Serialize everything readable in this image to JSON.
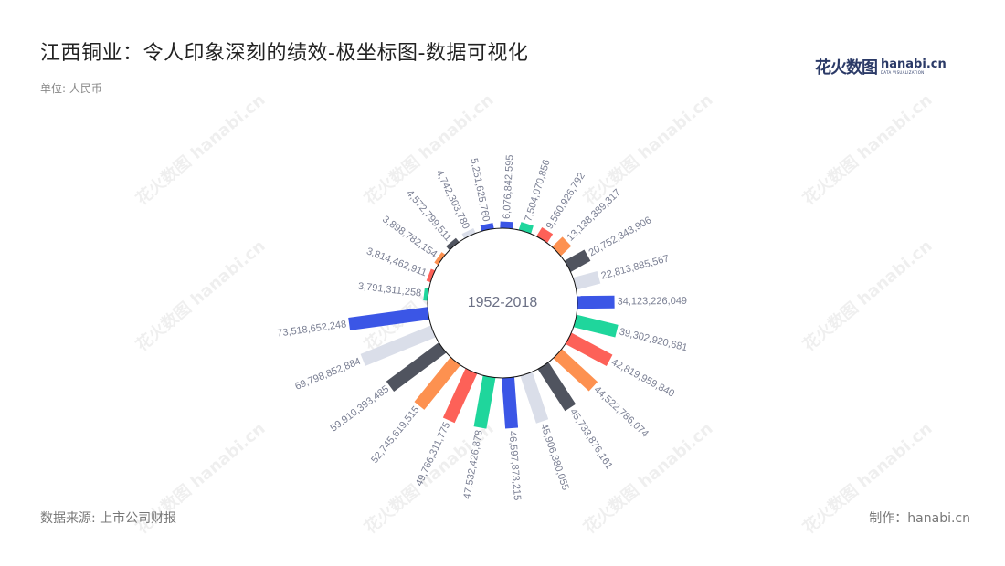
{
  "title": "江西铜业：令人印象深刻的绩效-极坐标图-数据可视化",
  "unit": "单位: 人民币",
  "logo": {
    "cn": "花火数图",
    "en": "hanabi.cn",
    "en_sub": "DATA VISUALIZATION"
  },
  "source": "数据来源: 上市公司财报",
  "maker": "制作：hanabi.cn",
  "watermark": "花火数图 hanabi.cn",
  "chart_data": {
    "type": "bar",
    "polar": true,
    "center_label": "1952-2018",
    "palette": [
      "#3b56e6",
      "#1fd69c",
      "#fd6158",
      "#fd9150",
      "#50545f",
      "#dadee9"
    ],
    "values": [
      6076842595,
      7504070856,
      9560926792,
      13138389317,
      20752343906,
      22813885567,
      34123226049,
      39302920681,
      42819959840,
      44522786074,
      45733876161,
      45906380055,
      46597873215,
      47532426878,
      49766311775,
      52745619515,
      59910393485,
      69798852884,
      73518652248,
      3791311258,
      3814462911,
      3898782154,
      4572799511,
      4742303780,
      5251625760
    ],
    "labels": [
      "6,076,842,595",
      "7,504,070,856",
      "9,560,926,792",
      "13,138,389,317",
      "20,752,343,906",
      "22,813,885,567",
      "34,123,226,049",
      "39,302,920,681",
      "42,819,959,840",
      "44,522,786,074",
      "45,733,876,161",
      "45,906,380,055",
      "46,597,873,215",
      "47,532,426,878",
      "49,766,311,775",
      "52,745,619,515",
      "59,910,393,485",
      "69,798,852,884",
      "73,518,652,248",
      "3,791,311,258",
      "3,814,462,911",
      "3,898,782,154",
      "4,572,799,511",
      "4,742,303,780",
      "5,251,625,760"
    ]
  }
}
